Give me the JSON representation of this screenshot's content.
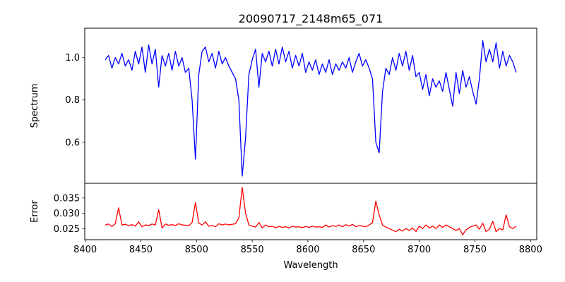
{
  "chart_data": [
    {
      "type": "line",
      "title": "20090717_2148m65_071",
      "xlabel": "",
      "ylabel": "Spectrum",
      "xlim": [
        8399.6,
        8805.5
      ],
      "ylim": [
        0.406,
        1.139
      ],
      "yticks": [
        0.6,
        0.8,
        1.0
      ],
      "ytick_labels": [
        "0.6",
        "0.8",
        "1.0"
      ],
      "grid": false,
      "series": [
        {
          "name": "Spectrum",
          "color": "#0000ff",
          "x_start": 8418,
          "x_step": 3,
          "values": [
            0.99,
            1.01,
            0.95,
            1.0,
            0.97,
            1.02,
            0.96,
            0.99,
            0.94,
            1.03,
            0.97,
            1.05,
            0.93,
            1.06,
            0.97,
            1.04,
            0.86,
            1.01,
            0.96,
            1.02,
            0.94,
            1.03,
            0.96,
            1.0,
            0.93,
            0.95,
            0.8,
            0.52,
            0.92,
            1.03,
            1.05,
            0.98,
            1.02,
            0.95,
            1.03,
            0.97,
            1.0,
            0.96,
            0.93,
            0.9,
            0.8,
            0.44,
            0.62,
            0.92,
            0.99,
            1.04,
            0.86,
            1.02,
            0.98,
            1.03,
            0.96,
            1.04,
            0.97,
            1.05,
            0.98,
            1.03,
            0.95,
            1.01,
            0.96,
            1.02,
            0.93,
            0.98,
            0.94,
            0.99,
            0.92,
            0.97,
            0.93,
            0.99,
            0.92,
            0.97,
            0.94,
            0.98,
            0.95,
            1.0,
            0.93,
            0.98,
            1.02,
            0.96,
            0.99,
            0.95,
            0.9,
            0.6,
            0.55,
            0.84,
            0.95,
            0.92,
            1.0,
            0.94,
            1.02,
            0.96,
            1.03,
            0.94,
            1.01,
            0.91,
            0.93,
            0.85,
            0.92,
            0.82,
            0.9,
            0.86,
            0.89,
            0.84,
            0.93,
            0.85,
            0.77,
            0.93,
            0.83,
            0.94,
            0.86,
            0.91,
            0.84,
            0.78,
            0.9,
            1.08,
            0.98,
            1.04,
            0.98,
            1.07,
            0.95,
            1.03,
            0.96,
            1.01,
            0.98,
            0.93
          ]
        }
      ]
    },
    {
      "type": "line",
      "title": "",
      "xlabel": "Wavelength",
      "ylabel": "Error",
      "xlim": [
        8399.6,
        8805.5
      ],
      "ylim": [
        0.02138,
        0.0398
      ],
      "xticks": [
        8400,
        8450,
        8500,
        8550,
        8600,
        8650,
        8700,
        8750,
        8800
      ],
      "xtick_labels": [
        "8400",
        "8450",
        "8500",
        "8550",
        "8600",
        "8650",
        "8700",
        "8750",
        "8800"
      ],
      "yticks": [
        0.025,
        0.03,
        0.035
      ],
      "ytick_labels": [
        "0.025",
        "0.030",
        "0.035"
      ],
      "grid": false,
      "series": [
        {
          "name": "Error",
          "color": "#ff0000",
          "x_start": 8418,
          "x_step": 3,
          "values": [
            0.0262,
            0.0265,
            0.0257,
            0.0266,
            0.0318,
            0.0262,
            0.0264,
            0.026,
            0.0263,
            0.0258,
            0.0272,
            0.0256,
            0.0262,
            0.026,
            0.0265,
            0.0262,
            0.0312,
            0.0252,
            0.0265,
            0.0261,
            0.0263,
            0.026,
            0.0266,
            0.0262,
            0.0261,
            0.026,
            0.027,
            0.0335,
            0.0268,
            0.0262,
            0.0272,
            0.0258,
            0.026,
            0.0256,
            0.0266,
            0.0262,
            0.0265,
            0.0262,
            0.0264,
            0.0266,
            0.0285,
            0.0385,
            0.03,
            0.0262,
            0.0258,
            0.0255,
            0.027,
            0.0252,
            0.0262,
            0.0256,
            0.0258,
            0.0253,
            0.0257,
            0.0254,
            0.0256,
            0.0252,
            0.0258,
            0.0255,
            0.0256,
            0.0253,
            0.0257,
            0.0254,
            0.0258,
            0.0255,
            0.0256,
            0.0254,
            0.0262,
            0.0255,
            0.026,
            0.0257,
            0.0262,
            0.0256,
            0.0263,
            0.0258,
            0.0264,
            0.0256,
            0.026,
            0.0258,
            0.0256,
            0.0262,
            0.027,
            0.034,
            0.0295,
            0.0262,
            0.0255,
            0.025,
            0.0245,
            0.024,
            0.0248,
            0.0242,
            0.025,
            0.0244,
            0.0252,
            0.024,
            0.0258,
            0.025,
            0.0262,
            0.0252,
            0.0258,
            0.025,
            0.0262,
            0.0254,
            0.0262,
            0.0256,
            0.025,
            0.0244,
            0.025,
            0.023,
            0.0246,
            0.0254,
            0.0258,
            0.0262,
            0.0248,
            0.0268,
            0.024,
            0.0248,
            0.0274,
            0.024,
            0.025,
            0.0246,
            0.0295,
            0.0256,
            0.025,
            0.0258
          ]
        }
      ]
    }
  ]
}
